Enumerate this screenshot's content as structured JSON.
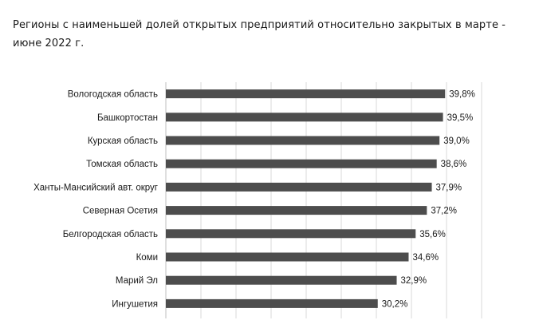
{
  "chart_data": {
    "type": "bar",
    "orientation": "horizontal",
    "title": "Регионы с наименьшей долей открытых предприятий относительно закрытых в марте - июне 2022 г.",
    "categories": [
      "Вологодская область",
      "Башкортостан",
      "Курская область",
      "Томская область",
      "Ханты-Мансийский авт. округ",
      "Северная Осетия",
      "Белгородская область",
      "Коми",
      "Марий Эл",
      "Ингушетия"
    ],
    "values": [
      39.8,
      39.5,
      39.0,
      38.6,
      37.9,
      37.2,
      35.6,
      34.6,
      32.9,
      30.2
    ],
    "data_labels": [
      "39,8%",
      "39,5%",
      "39,0%",
      "38,6%",
      "37,9%",
      "37,2%",
      "35,6%",
      "34,6%",
      "32,9%",
      "30,2%"
    ],
    "xlim": [
      0,
      45
    ],
    "grid": true,
    "bar_color": "#4d4d4d",
    "grid_color": "#d9d9d9"
  }
}
